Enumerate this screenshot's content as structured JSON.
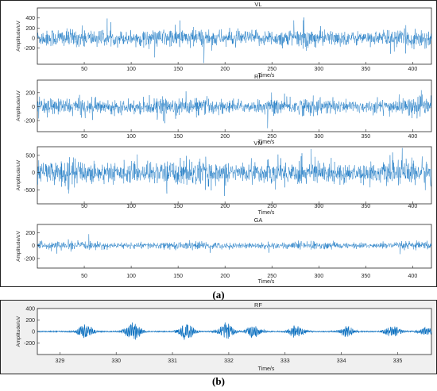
{
  "figure": {
    "caption_a": "(a)",
    "caption_b": "(b)"
  },
  "chart_data": [
    {
      "type": "line",
      "title": "VL",
      "xlabel": "Time/s",
      "ylabel": "Amplitude/uV",
      "xlim": [
        0,
        420
      ],
      "ylim": [
        -520,
        600
      ],
      "xticks": [
        50,
        100,
        150,
        200,
        250,
        300,
        350,
        400
      ],
      "yticks": [
        -200,
        0,
        200,
        400
      ],
      "series": [
        {
          "kind": "emg",
          "base_amplitude": 170,
          "peak_amplitude": 300,
          "color": "#0a6fbf"
        }
      ]
    },
    {
      "type": "line",
      "title": "RF",
      "xlabel": "Time/s",
      "ylabel": "Amplitude/uV",
      "xlim": [
        0,
        420
      ],
      "ylim": [
        -360,
        380
      ],
      "xticks": [
        50,
        100,
        150,
        200,
        250,
        300,
        350,
        400
      ],
      "yticks": [
        -200,
        0,
        200
      ],
      "series": [
        {
          "kind": "emg",
          "base_amplitude": 110,
          "peak_amplitude": 210,
          "color": "#0a6fbf"
        }
      ]
    },
    {
      "type": "line",
      "title": "VM",
      "xlabel": "Time/s",
      "ylabel": "Amplitude/uV",
      "xlim": [
        0,
        420
      ],
      "ylim": [
        -900,
        750
      ],
      "xticks": [
        50,
        100,
        150,
        200,
        250,
        300,
        350,
        400
      ],
      "yticks": [
        -500,
        0,
        500
      ],
      "series": [
        {
          "kind": "emg",
          "base_amplitude": 330,
          "peak_amplitude": 560,
          "color": "#0a6fbf"
        }
      ]
    },
    {
      "type": "line",
      "title": "GA",
      "xlabel": "Time/s",
      "ylabel": "Amplitude/uV",
      "xlim": [
        0,
        420
      ],
      "ylim": [
        -350,
        330
      ],
      "xticks": [
        50,
        100,
        150,
        200,
        250,
        300,
        350,
        400
      ],
      "yticks": [
        -200,
        0,
        200
      ],
      "series": [
        {
          "kind": "emg",
          "base_amplitude": 55,
          "peak_amplitude": 110,
          "color": "#0a6fbf"
        }
      ]
    },
    {
      "type": "line",
      "title": "RF",
      "xlabel": "Time/s",
      "ylabel": "Amplitude/uV",
      "xlim": [
        328.6,
        335.6
      ],
      "ylim": [
        -400,
        400
      ],
      "xticks": [
        329,
        330,
        331,
        332,
        333,
        334,
        335
      ],
      "yticks": [
        -200,
        0,
        200,
        400
      ],
      "series": [
        {
          "kind": "bursts",
          "burst_centers": [
            329.45,
            330.3,
            331.25,
            331.95,
            332.45,
            333.2,
            334.1,
            334.9,
            335.5
          ],
          "burst_amplitudes": [
            140,
            170,
            150,
            160,
            120,
            110,
            90,
            120,
            60
          ],
          "color": "#0a6fbf"
        }
      ]
    }
  ]
}
